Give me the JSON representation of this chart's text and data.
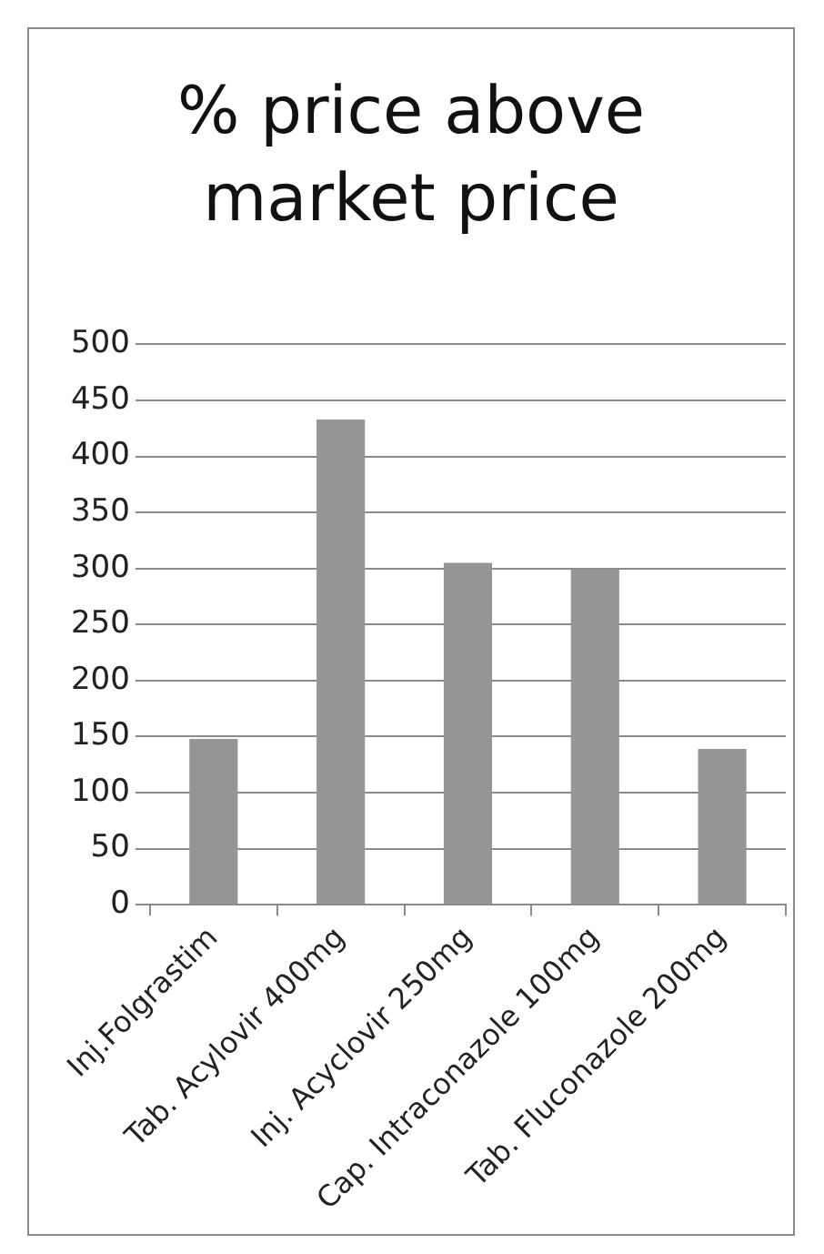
{
  "chart_data": {
    "type": "bar",
    "title": "% price above market price",
    "categories": [
      "Inj.Folgrastim",
      "Tab. Acylovir 400mg",
      "Inj. Acyclovir 250mg",
      "Cap. Intraconazole 100mg",
      "Tab. Fluconazole 200mg"
    ],
    "values": [
      148,
      433,
      305,
      299,
      139
    ],
    "color": "#959595",
    "ylim": [
      0,
      500
    ],
    "yticks": [
      0,
      50,
      100,
      150,
      200,
      250,
      300,
      350,
      400,
      450,
      500
    ],
    "grid": "y",
    "legend": false
  }
}
